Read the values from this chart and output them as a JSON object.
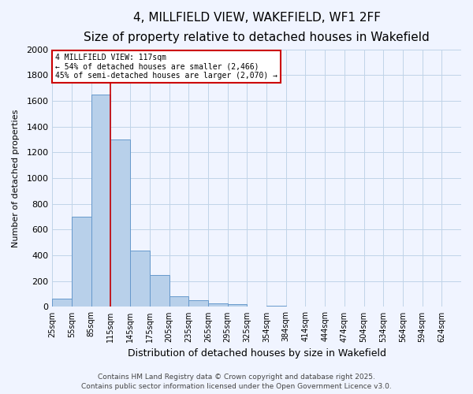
{
  "title": "4, MILLFIELD VIEW, WAKEFIELD, WF1 2FF",
  "subtitle": "Size of property relative to detached houses in Wakefield",
  "xlabel": "Distribution of detached houses by size in Wakefield",
  "ylabel": "Number of detached properties",
  "bar_values": [
    65,
    700,
    1650,
    1300,
    435,
    250,
    85,
    50,
    30,
    20,
    0,
    10,
    0,
    0,
    0,
    0,
    0,
    0,
    0,
    0,
    0
  ],
  "bar_labels": [
    "25sqm",
    "55sqm",
    "85sqm",
    "115sqm",
    "145sqm",
    "175sqm",
    "205sqm",
    "235sqm",
    "265sqm",
    "295sqm",
    "325sqm",
    "354sqm",
    "384sqm",
    "414sqm",
    "444sqm",
    "474sqm",
    "504sqm",
    "534sqm",
    "564sqm",
    "594sqm",
    "624sqm"
  ],
  "bar_color": "#b8d0ea",
  "bar_edge_color": "#6699cc",
  "ylim": [
    0,
    2000
  ],
  "yticks": [
    0,
    200,
    400,
    600,
    800,
    1000,
    1200,
    1400,
    1600,
    1800,
    2000
  ],
  "red_line_x": 3,
  "annotation_title": "4 MILLFIELD VIEW: 117sqm",
  "annotation_line1": "← 54% of detached houses are smaller (2,466)",
  "annotation_line2": "45% of semi-detached houses are larger (2,070) →",
  "annotation_box_color": "#ffffff",
  "annotation_box_edge": "#cc0000",
  "red_line_color": "#cc0000",
  "footer1": "Contains HM Land Registry data © Crown copyright and database right 2025.",
  "footer2": "Contains public sector information licensed under the Open Government Licence v3.0.",
  "bg_color": "#f0f4ff",
  "grid_color": "#c0d4e8",
  "title_fontsize": 11,
  "subtitle_fontsize": 9,
  "tick_label_fontsize": 7,
  "ylabel_fontsize": 8,
  "xlabel_fontsize": 9,
  "footer_fontsize": 6.5
}
